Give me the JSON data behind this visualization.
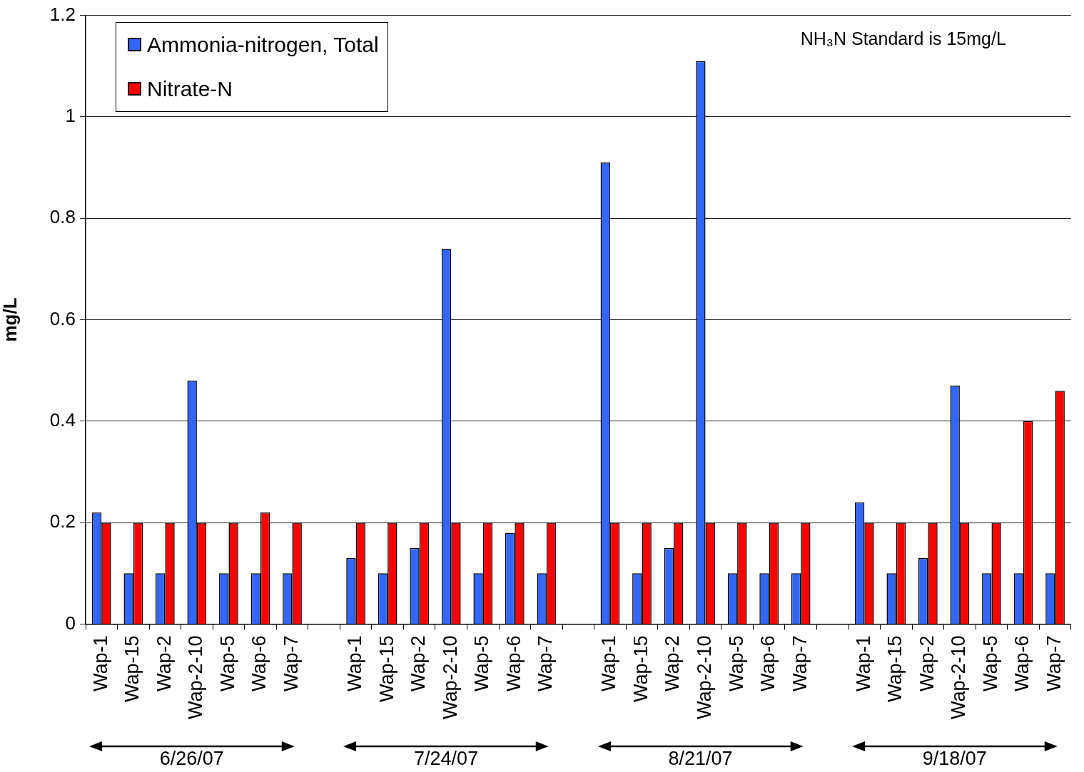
{
  "chart_data": {
    "type": "bar",
    "categories": [
      "Wap-1",
      "Wap-15",
      "Wap-2",
      "Wap-2-10",
      "Wap-5",
      "Wap-6",
      "Wap-7",
      null,
      "Wap-1",
      "Wap-15",
      "Wap-2",
      "Wap-2-10",
      "Wap-5",
      "Wap-6",
      "Wap-7",
      null,
      "Wap-1",
      "Wap-15",
      "Wap-2",
      "Wap-2-10",
      "Wap-5",
      "Wap-6",
      "Wap-7",
      null,
      "Wap-1",
      "Wap-15",
      "Wap-2",
      "Wap-2-10",
      "Wap-5",
      "Wap-6",
      "Wap-7"
    ],
    "series": [
      {
        "name": "Ammonia-nitrogen, Total",
        "color": "#3366ff",
        "values": [
          0.22,
          0.1,
          0.1,
          0.48,
          0.1,
          0.1,
          0.1,
          null,
          0.13,
          0.1,
          0.15,
          0.74,
          0.1,
          0.18,
          0.1,
          null,
          0.91,
          0.1,
          0.15,
          1.11,
          0.1,
          0.1,
          0.1,
          null,
          0.24,
          0.1,
          0.13,
          0.47,
          0.1,
          0.1,
          0.1
        ]
      },
      {
        "name": "Nitrate-N",
        "color": "#ff0000",
        "values": [
          0.2,
          0.2,
          0.2,
          0.2,
          0.2,
          0.22,
          0.2,
          null,
          0.2,
          0.2,
          0.2,
          0.2,
          0.2,
          0.2,
          0.2,
          null,
          0.2,
          0.2,
          0.2,
          0.2,
          0.2,
          0.2,
          0.2,
          null,
          0.2,
          0.2,
          0.2,
          0.2,
          0.2,
          0.4,
          0.46
        ]
      }
    ],
    "ylabel": "mg/L",
    "ylim": [
      0,
      1.2
    ],
    "yticks": [
      0,
      0.2,
      0.4,
      0.6,
      0.8,
      1,
      1.2
    ],
    "grid": "y",
    "legend": "top left",
    "annotations": [
      "NH₃N Standard is 15mg/L",
      "6/26/07",
      "7/24/07",
      "8/21/07",
      "9/18/07"
    ]
  }
}
